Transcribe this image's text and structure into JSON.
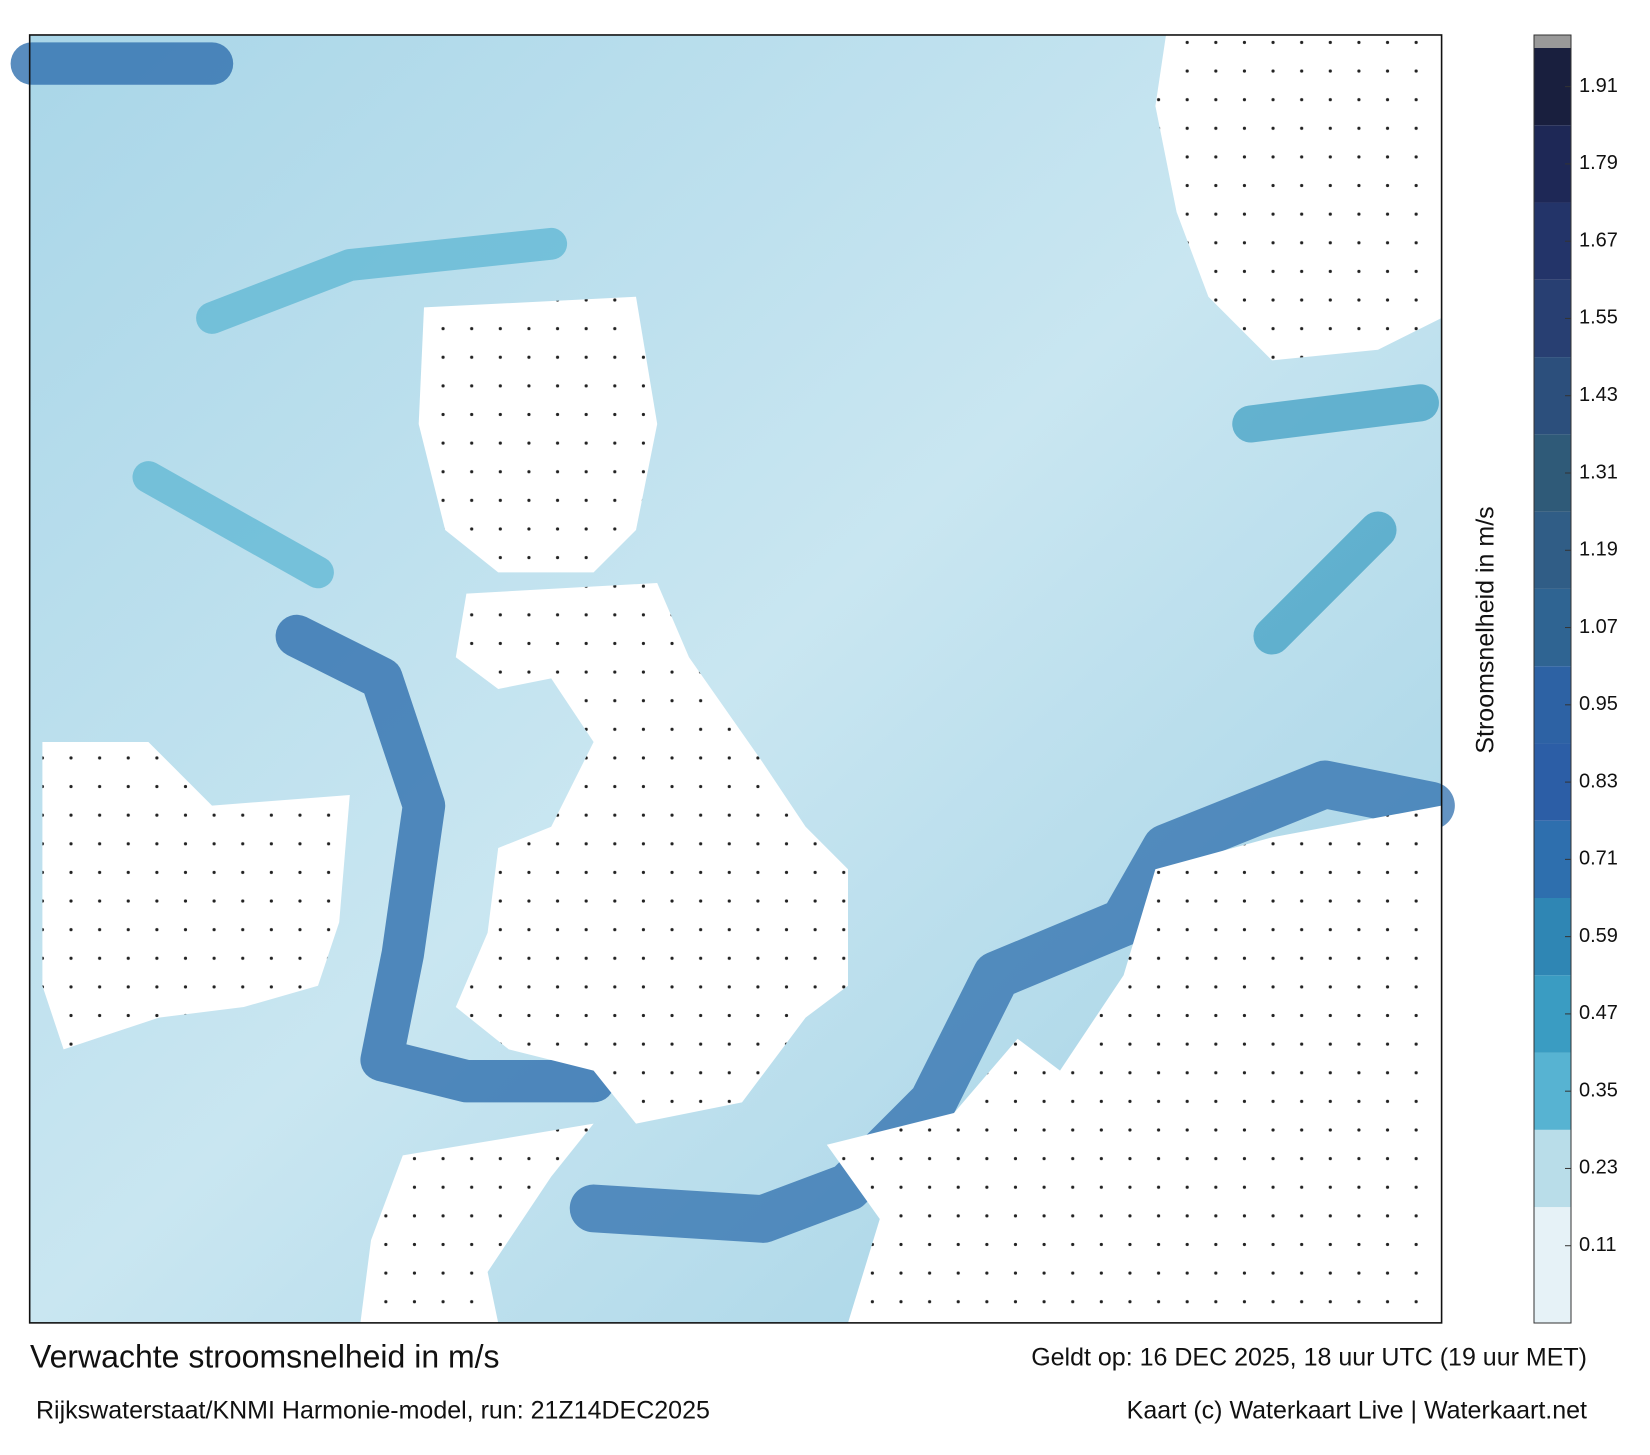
{
  "title": "Verwachte stroomsnelheid in m/s",
  "subtitle": "Rijkswaterstaat/KNMI Harmonie-model, run: 21Z14DEC2025",
  "valid": "Geldt op: 16 DEC 2025, 18 uur UTC (19 uur MET)",
  "credit": "Kaart (c) Waterkaart Live | Waterkaart.net",
  "colorbar": {
    "label": "Stroomsnelheid in m/s",
    "lim": [
      -0.01,
      1.97
    ],
    "ticks": [
      0.11,
      0.23,
      0.35,
      0.47,
      0.59,
      0.71,
      0.83,
      0.95,
      1.07,
      1.19,
      1.31,
      1.43,
      1.55,
      1.67,
      1.79,
      1.91
    ],
    "colors": [
      "#e6f2f7",
      "#b9dde9",
      "#57b3d2",
      "#3a9cc2",
      "#2f86b4",
      "#2e6fae",
      "#2c5ea6",
      "#2d62a4",
      "#2f6492",
      "#305d86",
      "#2f5a78",
      "#2c4f7c",
      "#283f72",
      "#233469",
      "#1e2856",
      "#191f3e"
    ]
  }
}
